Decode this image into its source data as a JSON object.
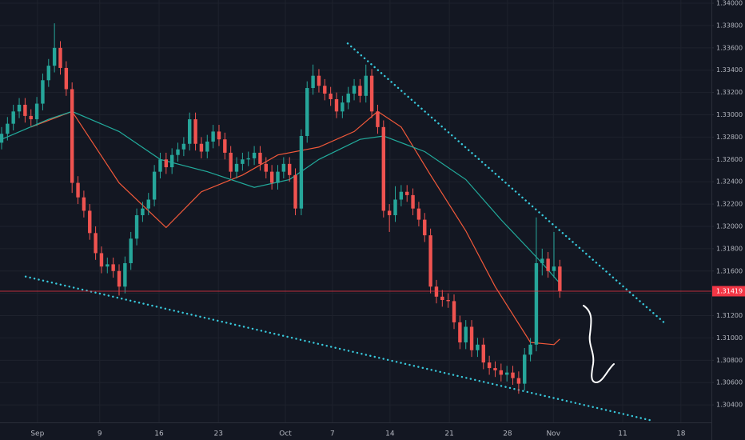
{
  "chart_data": {
    "type": "candlestick",
    "up_color": "#26a69a",
    "down_color": "#ef5350",
    "grid": true,
    "xlim": [
      -0.27,
      120.8
    ],
    "ylim": [
      1.30243,
      1.34029
    ],
    "yticks": [
      {
        "value": 1.34,
        "label": "1.34000"
      },
      {
        "value": 1.338,
        "label": "1.33800"
      },
      {
        "value": 1.336,
        "label": "1.33600"
      },
      {
        "value": 1.334,
        "label": "1.33400"
      },
      {
        "value": 1.332,
        "label": "1.33200"
      },
      {
        "value": 1.33,
        "label": "1.33000"
      },
      {
        "value": 1.328,
        "label": "1.32800"
      },
      {
        "value": 1.326,
        "label": "1.32600"
      },
      {
        "value": 1.324,
        "label": "1.32400"
      },
      {
        "value": 1.322,
        "label": "1.32200"
      },
      {
        "value": 1.32,
        "label": "1.32000"
      },
      {
        "value": 1.318,
        "label": "1.31800"
      },
      {
        "value": 1.316,
        "label": "1.31600"
      },
      {
        "value": 1.314,
        "label": "1.31400"
      },
      {
        "value": 1.312,
        "label": "1.31200"
      },
      {
        "value": 1.31,
        "label": "1.31000"
      },
      {
        "value": 1.308,
        "label": "1.30800"
      },
      {
        "value": 1.306,
        "label": "1.30600"
      },
      {
        "value": 1.304,
        "label": "1.30400"
      }
    ],
    "xticks": [
      {
        "value": 6.1,
        "label": "Sep"
      },
      {
        "value": 16.7,
        "label": "9"
      },
      {
        "value": 26.8,
        "label": "16"
      },
      {
        "value": 36.9,
        "label": "23"
      },
      {
        "value": 48.3,
        "label": "Oct"
      },
      {
        "value": 56.3,
        "label": "7"
      },
      {
        "value": 66.1,
        "label": "14"
      },
      {
        "value": 76.2,
        "label": "21"
      },
      {
        "value": 86.1,
        "label": "28"
      },
      {
        "value": 93.9,
        "label": "Nov"
      },
      {
        "value": 105.7,
        "label": "11"
      },
      {
        "value": 115.6,
        "label": "18"
      }
    ],
    "last_price": 1.31419,
    "last_price_color": "#f23645",
    "open": [
      1.3275,
      1.3283,
      1.3292,
      1.3303,
      1.3309,
      1.3299,
      1.3296,
      1.331,
      1.3331,
      1.3344,
      1.336,
      1.3342,
      1.3323,
      1.3239,
      1.3226,
      1.3214,
      1.3194,
      1.3176,
      1.3164,
      1.3166,
      1.316,
      1.3146,
      1.3167,
      1.3189,
      1.321,
      1.3216,
      1.3224,
      1.3249,
      1.326,
      1.3253,
      1.3264,
      1.3269,
      1.3274,
      1.3296,
      1.3274,
      1.3267,
      1.3276,
      1.3285,
      1.3278,
      1.3266,
      1.3249,
      1.3256,
      1.326,
      1.3261,
      1.3266,
      1.3256,
      1.3249,
      1.3239,
      1.3249,
      1.3256,
      1.3246,
      1.3216,
      1.3281,
      1.3324,
      1.3335,
      1.3326,
      1.3319,
      1.3314,
      1.3303,
      1.3311,
      1.3319,
      1.3326,
      1.3317,
      1.3335,
      1.3303,
      1.3289,
      1.3214,
      1.321,
      1.3224,
      1.3231,
      1.3228,
      1.3216,
      1.3206,
      1.3192,
      1.3146,
      1.3137,
      1.3134,
      1.3133,
      1.3114,
      1.3096,
      1.311,
      1.3089,
      1.3094,
      1.3078,
      1.3073,
      1.3071,
      1.3067,
      1.3069,
      1.3064,
      1.3059,
      1.3085,
      1.3094,
      1.3167,
      1.3171,
      1.316,
      1.3164
    ],
    "high": [
      1.3289,
      1.3298,
      1.3309,
      1.3315,
      1.3315,
      1.3305,
      1.3316,
      1.3337,
      1.335,
      1.3382,
      1.3366,
      1.3348,
      1.3329,
      1.3245,
      1.3232,
      1.322,
      1.32,
      1.3182,
      1.3172,
      1.3172,
      1.3166,
      1.3173,
      1.3195,
      1.3216,
      1.3222,
      1.323,
      1.3255,
      1.3266,
      1.3266,
      1.327,
      1.3275,
      1.328,
      1.3302,
      1.3302,
      1.328,
      1.3282,
      1.3291,
      1.3291,
      1.3284,
      1.3272,
      1.3262,
      1.3266,
      1.3267,
      1.3272,
      1.3272,
      1.3262,
      1.3255,
      1.3255,
      1.3262,
      1.3262,
      1.3252,
      1.3287,
      1.333,
      1.3345,
      1.3341,
      1.3332,
      1.3325,
      1.332,
      1.3317,
      1.3325,
      1.3332,
      1.3332,
      1.3345,
      1.3341,
      1.3309,
      1.3295,
      1.322,
      1.3236,
      1.3237,
      1.3237,
      1.3234,
      1.3222,
      1.3212,
      1.3198,
      1.3152,
      1.3143,
      1.314,
      1.3139,
      1.312,
      1.3116,
      1.3116,
      1.31,
      1.31,
      1.3084,
      1.3079,
      1.3077,
      1.3075,
      1.3075,
      1.307,
      1.3091,
      1.31,
      1.3208,
      1.318,
      1.3177,
      1.3195,
      1.317
    ],
    "low": [
      1.3269,
      1.3277,
      1.3286,
      1.3297,
      1.3293,
      1.329,
      1.329,
      1.3304,
      1.3325,
      1.3338,
      1.3336,
      1.3317,
      1.323,
      1.322,
      1.3208,
      1.3188,
      1.317,
      1.3158,
      1.3158,
      1.3154,
      1.3138,
      1.314,
      1.3161,
      1.3183,
      1.3204,
      1.321,
      1.3218,
      1.3243,
      1.3247,
      1.3247,
      1.3258,
      1.3263,
      1.3268,
      1.3268,
      1.3261,
      1.3261,
      1.327,
      1.3272,
      1.326,
      1.3243,
      1.3243,
      1.325,
      1.3254,
      1.3255,
      1.325,
      1.3243,
      1.3233,
      1.3233,
      1.3243,
      1.324,
      1.321,
      1.321,
      1.3275,
      1.3318,
      1.332,
      1.3313,
      1.3308,
      1.3297,
      1.3297,
      1.3305,
      1.3313,
      1.3311,
      1.3311,
      1.3297,
      1.3283,
      1.3208,
      1.3195,
      1.3204,
      1.3218,
      1.3222,
      1.321,
      1.32,
      1.3186,
      1.314,
      1.3131,
      1.3128,
      1.3127,
      1.3108,
      1.309,
      1.309,
      1.3083,
      1.3083,
      1.3072,
      1.3067,
      1.3065,
      1.3061,
      1.3061,
      1.3058,
      1.305,
      1.3053,
      1.3079,
      1.3088,
      1.3156,
      1.3154,
      1.3154,
      1.3136
    ],
    "close": [
      1.3283,
      1.3292,
      1.3303,
      1.3309,
      1.3299,
      1.3296,
      1.331,
      1.3331,
      1.3344,
      1.336,
      1.3342,
      1.3323,
      1.3239,
      1.3226,
      1.3214,
      1.3194,
      1.3176,
      1.3164,
      1.3166,
      1.316,
      1.3146,
      1.3167,
      1.3189,
      1.321,
      1.3216,
      1.3224,
      1.3249,
      1.326,
      1.3253,
      1.3264,
      1.3269,
      1.3274,
      1.3296,
      1.3274,
      1.3267,
      1.3276,
      1.3285,
      1.3278,
      1.3266,
      1.3249,
      1.3256,
      1.326,
      1.3261,
      1.3266,
      1.3256,
      1.3249,
      1.3239,
      1.3249,
      1.3256,
      1.3246,
      1.3216,
      1.3281,
      1.3324,
      1.3335,
      1.3326,
      1.3319,
      1.3314,
      1.3303,
      1.3311,
      1.3319,
      1.3326,
      1.3317,
      1.3335,
      1.3303,
      1.3289,
      1.3214,
      1.321,
      1.3224,
      1.3231,
      1.3228,
      1.3216,
      1.3206,
      1.3192,
      1.3146,
      1.3137,
      1.3134,
      1.3133,
      1.3114,
      1.3096,
      1.311,
      1.3089,
      1.3094,
      1.3078,
      1.3073,
      1.3071,
      1.3067,
      1.3069,
      1.3064,
      1.3059,
      1.3085,
      1.3094,
      1.3167,
      1.3171,
      1.316,
      1.3164,
      1.3142
    ],
    "moving_averages": [
      {
        "color": "#f2593a",
        "x": [
          5,
          12,
          20,
          28,
          34,
          41,
          47,
          54,
          60,
          64,
          68,
          73,
          79,
          84,
          90,
          94,
          95
        ],
        "values": [
          1.3289,
          1.3303,
          1.3239,
          1.3199,
          1.3231,
          1.3246,
          1.3264,
          1.3271,
          1.3285,
          1.3303,
          1.3289,
          1.3246,
          1.3196,
          1.3146,
          1.3096,
          1.3094,
          1.3099
        ]
      },
      {
        "color": "#22ab9c",
        "x": [
          0,
          8,
          12,
          20,
          27,
          35,
          43,
          49,
          54,
          61,
          65,
          72,
          79,
          85,
          92,
          95
        ],
        "values": [
          1.3278,
          1.3296,
          1.3303,
          1.3285,
          1.326,
          1.3249,
          1.3235,
          1.3242,
          1.326,
          1.3278,
          1.3281,
          1.3267,
          1.3242,
          1.3206,
          1.3167,
          1.3149
        ]
      }
    ],
    "trendlines": [
      {
        "color": "#38c9dc",
        "x": [
          58.9,
          112.7
        ],
        "values": [
          1.3364,
          1.3114
        ]
      },
      {
        "color": "#38c9dc",
        "x": [
          4.1,
          110.6
        ],
        "values": [
          1.3155,
          1.3026
        ]
      }
    ]
  }
}
